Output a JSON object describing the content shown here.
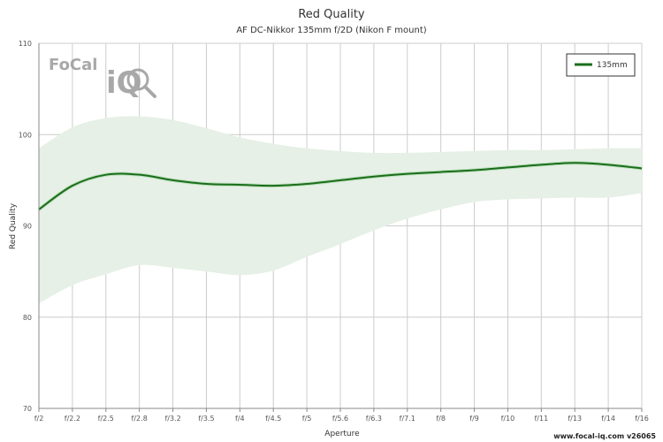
{
  "chart_data": {
    "type": "line",
    "title": "Red Quality",
    "subtitle": "AF DC-Nikkor 135mm f/2D (Nikon F mount)",
    "xlabel": "Aperture",
    "ylabel": "Red Quality",
    "categories": [
      "f/2",
      "f/2.2",
      "f/2.5",
      "f/2.8",
      "f/3.2",
      "f/3.5",
      "f/4",
      "f/4.5",
      "f/5",
      "f/5.6",
      "f/6.3",
      "f/7.1",
      "f/8",
      "f/9",
      "f/10",
      "f/11",
      "f/13",
      "f/14",
      "f/16"
    ],
    "y_ticks": [
      70,
      80,
      90,
      100,
      110
    ],
    "ylim": [
      70,
      110
    ],
    "grid": true,
    "legend_position": "top-right",
    "series": [
      {
        "name": "135mm",
        "color": "#1a6e1a",
        "values": [
          91.8,
          94.4,
          95.6,
          95.6,
          95.0,
          94.6,
          94.5,
          94.4,
          94.6,
          95.0,
          95.4,
          95.7,
          95.9,
          96.1,
          96.4,
          96.7,
          96.9,
          96.7,
          96.3
        ]
      }
    ],
    "band": {
      "color": "#e6f0e6",
      "upper": [
        98.5,
        100.8,
        101.8,
        102.0,
        101.6,
        100.7,
        99.7,
        99.0,
        98.5,
        98.2,
        98.0,
        98.0,
        98.1,
        98.2,
        98.3,
        98.3,
        98.4,
        98.5,
        98.5
      ],
      "lower": [
        81.5,
        83.5,
        84.7,
        85.7,
        85.4,
        85.0,
        84.6,
        85.1,
        86.6,
        88.0,
        89.5,
        90.8,
        91.8,
        92.6,
        92.9,
        93.0,
        93.1,
        93.1,
        93.6
      ]
    }
  },
  "watermark": {
    "brand_word": "FoCal",
    "brand_suffix": "iQ"
  },
  "credit": "www.focal-iq.com  v26065"
}
